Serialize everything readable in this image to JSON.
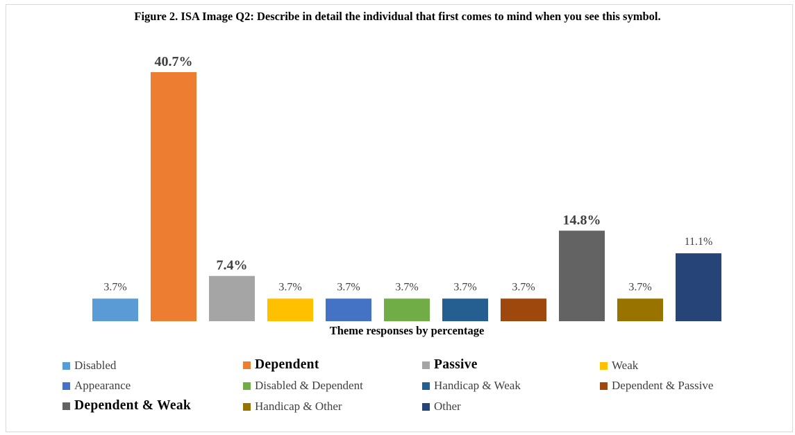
{
  "chart_data": {
    "type": "bar",
    "title": "Figure 2. ISA Image Q2: Describe in detail the individual that first comes to mind when you see this symbol.",
    "xlabel": "Theme responses by percentage",
    "ylabel": "",
    "ylim": [
      0,
      45
    ],
    "grid": false,
    "legend_position": "bottom",
    "categories": [
      "Disabled",
      "Dependent",
      "Passive",
      "Weak",
      "Appearance",
      "Disabled & Dependent",
      "Handicap & Weak",
      "Dependent & Passive",
      "Dependent & Weak",
      "Handicap & Other",
      "Other"
    ],
    "values": [
      3.7,
      40.7,
      7.4,
      3.7,
      3.7,
      3.7,
      3.7,
      3.7,
      14.8,
      3.7,
      11.1
    ],
    "data_labels": [
      "3.7%",
      "40.7%",
      "7.4%",
      "3.7%",
      "3.7%",
      "3.7%",
      "3.7%",
      "3.7%",
      "14.8%",
      "3.7%",
      "11.1%"
    ],
    "emphasized": [
      false,
      true,
      true,
      false,
      false,
      false,
      false,
      false,
      true,
      false,
      false
    ],
    "colors": [
      "#5b9bd5",
      "#ed7d31",
      "#a5a5a5",
      "#ffc000",
      "#4472c4",
      "#70ad47",
      "#255e91",
      "#9e480e",
      "#636363",
      "#997300",
      "#264478"
    ]
  }
}
